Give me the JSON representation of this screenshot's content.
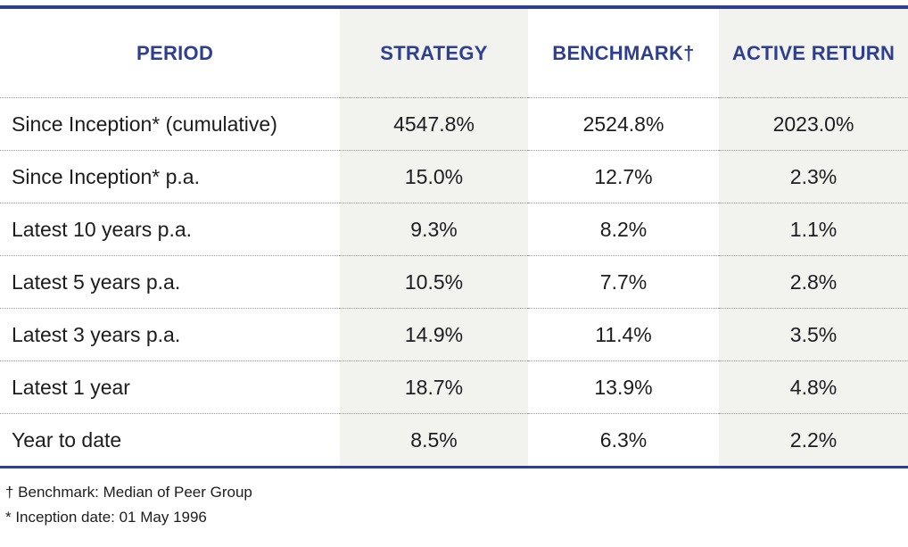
{
  "table": {
    "headers": {
      "period": "PERIOD",
      "strategy": "STRATEGY",
      "benchmark": "BENCHMARK†",
      "active": "ACTIVE RETURN"
    },
    "rows": [
      {
        "period": "Since Inception* (cumulative)",
        "strategy": "4547.8%",
        "benchmark": "2524.8%",
        "active": "2023.0%"
      },
      {
        "period": "Since Inception* p.a.",
        "strategy": "15.0%",
        "benchmark": "12.7%",
        "active": "2.3%"
      },
      {
        "period": "Latest 10 years p.a.",
        "strategy": "9.3%",
        "benchmark": "8.2%",
        "active": "1.1%"
      },
      {
        "period": "Latest 5 years p.a.",
        "strategy": "10.5%",
        "benchmark": "7.7%",
        "active": "2.8%"
      },
      {
        "period": "Latest 3 years p.a.",
        "strategy": "14.9%",
        "benchmark": "11.4%",
        "active": "3.5%"
      },
      {
        "period": "Latest 1 year",
        "strategy": "18.7%",
        "benchmark": "13.9%",
        "active": "4.8%"
      },
      {
        "period": "Year to date",
        "strategy": "8.5%",
        "benchmark": "6.3%",
        "active": "2.2%"
      }
    ]
  },
  "footnotes": {
    "benchmark": "† Benchmark: Median of Peer Group",
    "inception": "* Inception date: 01 May 1996"
  },
  "colors": {
    "accent": "#2e3f8f",
    "shade": "#f2f2ef"
  }
}
